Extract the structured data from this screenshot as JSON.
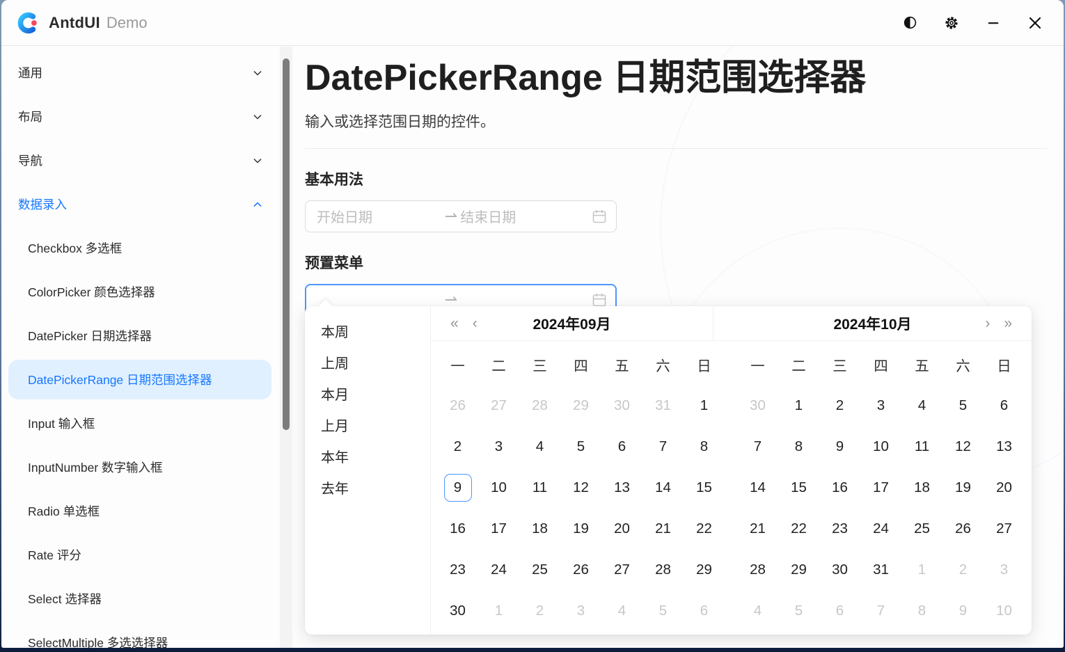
{
  "titlebar": {
    "brand": "AntdUI",
    "brand_suffix": "Demo",
    "icons": {
      "theme": "half-circle-icon",
      "settings": "gear-icon",
      "minimize": "minimize-icon",
      "close": "close-icon"
    }
  },
  "sidebar": {
    "items": [
      {
        "type": "group",
        "label": "通用",
        "expanded": false
      },
      {
        "type": "group",
        "label": "布局",
        "expanded": false
      },
      {
        "type": "group",
        "label": "导航",
        "expanded": false
      },
      {
        "type": "group",
        "label": "数据录入",
        "expanded": true,
        "active": true
      },
      {
        "type": "item",
        "label": "Checkbox 多选框"
      },
      {
        "type": "item",
        "label": "ColorPicker 颜色选择器"
      },
      {
        "type": "item",
        "label": "DatePicker 日期选择器"
      },
      {
        "type": "item",
        "label": "DatePickerRange 日期范围选择器",
        "selected": true
      },
      {
        "type": "item",
        "label": "Input 输入框"
      },
      {
        "type": "item",
        "label": "InputNumber 数字输入框"
      },
      {
        "type": "item",
        "label": "Radio 单选框"
      },
      {
        "type": "item",
        "label": "Rate 评分"
      },
      {
        "type": "item",
        "label": "Select 选择器"
      },
      {
        "type": "item",
        "label": "SelectMultiple 多选选择器"
      }
    ]
  },
  "main": {
    "title": "DatePickerRange 日期范围选择器",
    "subtitle": "输入或选择范围日期的控件。",
    "section_basic": "基本用法",
    "section_preset": "预置菜单",
    "range_input": {
      "start_placeholder": "开始日期",
      "end_placeholder": "结束日期",
      "separator": "⇀"
    }
  },
  "picker": {
    "presets": [
      "本周",
      "上周",
      "本月",
      "上月",
      "本年",
      "去年"
    ],
    "weekdays": [
      "一",
      "二",
      "三",
      "四",
      "五",
      "六",
      "日"
    ],
    "nav": {
      "prev_year": "«",
      "prev_month": "‹",
      "next_month": "›",
      "next_year": "»"
    },
    "months": [
      {
        "title": "2024年09月",
        "cells": [
          "m26",
          "m27",
          "m28",
          "m29",
          "m30",
          "m31",
          "1",
          "2",
          "3",
          "4",
          "5",
          "6",
          "7",
          "8",
          "t9",
          "10",
          "11",
          "12",
          "13",
          "14",
          "15",
          "16",
          "17",
          "18",
          "19",
          "20",
          "21",
          "22",
          "23",
          "24",
          "25",
          "26",
          "27",
          "28",
          "29",
          "30",
          "m1",
          "m2",
          "m3",
          "m4",
          "m5",
          "m6"
        ]
      },
      {
        "title": "2024年10月",
        "cells": [
          "m30",
          "1",
          "2",
          "3",
          "4",
          "5",
          "6",
          "7",
          "8",
          "9",
          "10",
          "11",
          "12",
          "13",
          "14",
          "15",
          "16",
          "17",
          "18",
          "19",
          "20",
          "21",
          "22",
          "23",
          "24",
          "25",
          "26",
          "27",
          "28",
          "29",
          "30",
          "31",
          "m1",
          "m2",
          "m3",
          "m4",
          "m5",
          "m6",
          "m7",
          "m8",
          "m9",
          "m10"
        ]
      }
    ]
  },
  "colors": {
    "accent": "#1677ff",
    "selected_item_bg": "#e1f0ff",
    "muted_day": "#c7c7c7",
    "today_border": "#4b97ff"
  }
}
